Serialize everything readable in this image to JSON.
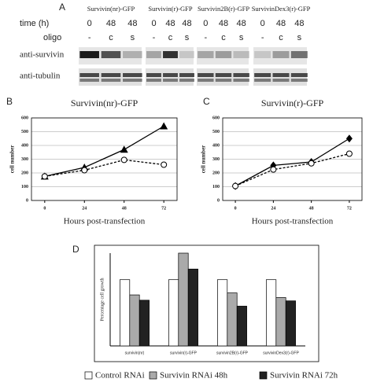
{
  "blot": {
    "label": "A",
    "time_label": "time (h)",
    "oligo_label": "oligo",
    "rows": [
      "anti-survivin",
      "anti-tubulin"
    ],
    "blocks": [
      {
        "header": "Survivin(nr)-GFP",
        "lanes": [
          {
            "time": "0",
            "oligo": "-"
          },
          {
            "time": "48",
            "oligo": "c"
          },
          {
            "time": "48",
            "oligo": "s"
          }
        ]
      },
      {
        "header": "Survivin(r)-GFP",
        "lanes": [
          {
            "time": "0",
            "oligo": "-"
          },
          {
            "time": "48",
            "oligo": "c"
          },
          {
            "time": "48",
            "oligo": "s"
          }
        ]
      },
      {
        "header": "Survivin2B(r)-GFP",
        "lanes": [
          {
            "time": "0",
            "oligo": "-"
          },
          {
            "time": "48",
            "oligo": "c"
          },
          {
            "time": "48",
            "oligo": "s"
          }
        ]
      },
      {
        "header": "SurvivinDex3(r)-GFP",
        "lanes": [
          {
            "time": "0",
            "oligo": "-"
          },
          {
            "time": "48",
            "oligo": "c"
          },
          {
            "time": "48",
            "oligo": "s"
          }
        ]
      }
    ]
  },
  "chart_data": [
    {
      "type": "line",
      "panel": "B",
      "title": "Survivin(nr)-GFP",
      "xlabel": "Hours post-transfection",
      "ylabel": "cell number",
      "x": [
        0,
        24,
        48,
        72
      ],
      "xlim": [
        -8,
        80
      ],
      "xticks": [
        0,
        24,
        48,
        72
      ],
      "ylim": [
        0,
        600
      ],
      "yticks": [
        0,
        100,
        200,
        300,
        400,
        500,
        600
      ],
      "grid": true,
      "series": [
        {
          "color": "#000000",
          "marker": "triangle",
          "dashed": false,
          "values": [
            175,
            240,
            370,
            540
          ]
        },
        {
          "color": "#000000",
          "marker": "circle",
          "dashed": true,
          "values": [
            175,
            220,
            295,
            260
          ]
        }
      ]
    },
    {
      "type": "line",
      "panel": "C",
      "title": "Survivin(r)-GFP",
      "xlabel": "Hours post-transfection",
      "ylabel": "cell number",
      "x": [
        0,
        24,
        48,
        72
      ],
      "xlim": [
        -8,
        80
      ],
      "xticks": [
        0,
        24,
        48,
        72
      ],
      "ylim": [
        0,
        600
      ],
      "yticks": [
        0,
        100,
        200,
        300,
        400,
        500,
        600
      ],
      "grid": true,
      "series": [
        {
          "color": "#000000",
          "marker": "diamond",
          "dashed": false,
          "values": [
            105,
            255,
            280,
            450
          ]
        },
        {
          "color": "#000000",
          "marker": "circle",
          "dashed": true,
          "values": [
            105,
            225,
            270,
            340
          ]
        }
      ]
    },
    {
      "type": "bar",
      "panel": "D",
      "ylabel": "Percentage cell growth",
      "ylim": [
        0,
        140
      ],
      "categories": [
        "survivin(nr)",
        "survivin(r)-GFP",
        "survivin2B(r)-GFP",
        "survivinDex3(r)-GFP"
      ],
      "series": [
        {
          "name": "Control RNAi",
          "color": "#ffffff",
          "values": [
            100,
            100,
            100,
            100
          ]
        },
        {
          "name": "Survivin RNAi 48h",
          "color": "#aaaaaa",
          "values": [
            77,
            140,
            80,
            73
          ]
        },
        {
          "name": "Survivin RNAi 72h",
          "color": "#222222",
          "values": [
            69,
            116,
            60,
            68
          ]
        }
      ]
    }
  ]
}
